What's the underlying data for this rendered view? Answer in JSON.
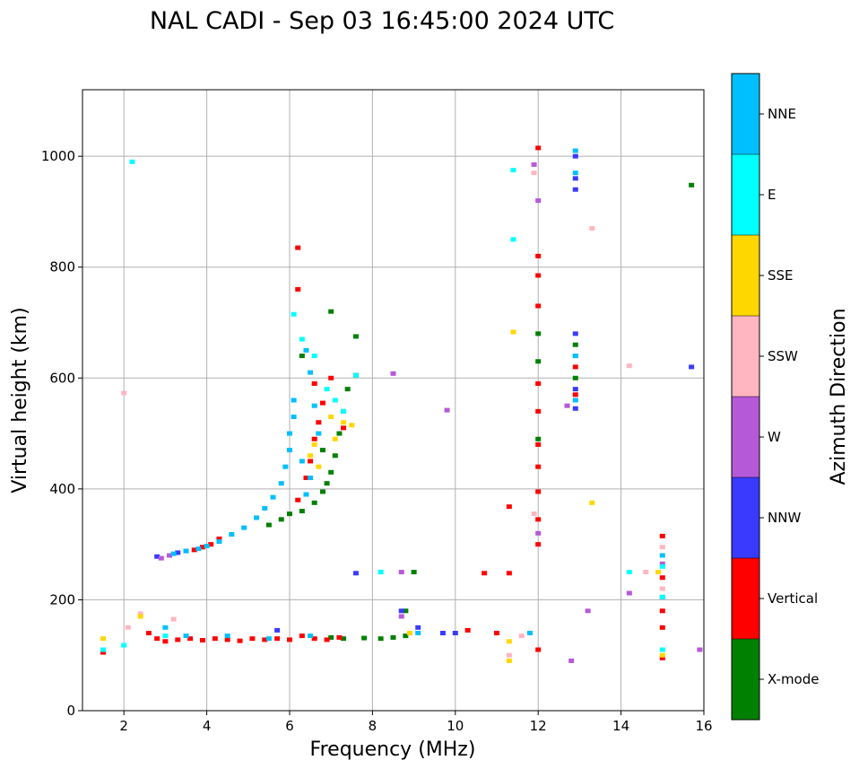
{
  "chart_data": {
    "type": "scatter",
    "title": "NAL CADI - Sep 03 16:45:00 2024 UTC",
    "xlabel": "Frequency (MHz)",
    "ylabel": "Virtual height (km)",
    "xlim": [
      1,
      16
    ],
    "ylim": [
      0,
      1120
    ],
    "xticks": [
      "2",
      "4",
      "6",
      "8",
      "10",
      "12",
      "14",
      "16"
    ],
    "yticks": [
      "0",
      "200",
      "400",
      "600",
      "800",
      "1000"
    ],
    "grid": true,
    "colorbar": {
      "title": "Azimuth Direction",
      "categories": [
        {
          "name": "X-mode",
          "color": "#008000"
        },
        {
          "name": "Vertical",
          "color": "#ff0000"
        },
        {
          "name": "NNW",
          "color": "#3a3aff"
        },
        {
          "name": "W",
          "color": "#b659d9"
        },
        {
          "name": "SSW",
          "color": "#ffb6c1"
        },
        {
          "name": "SSE",
          "color": "#ffd700"
        },
        {
          "name": "E",
          "color": "#00ffff"
        },
        {
          "name": "NNE",
          "color": "#00bfff"
        }
      ]
    },
    "series": [
      {
        "name": "X-mode",
        "points": [
          [
            6.3,
            360
          ],
          [
            6.6,
            375
          ],
          [
            6.8,
            395
          ],
          [
            6.9,
            410
          ],
          [
            7.0,
            430
          ],
          [
            7.1,
            460
          ],
          [
            7.2,
            500
          ],
          [
            7.3,
            540
          ],
          [
            7.4,
            580
          ],
          [
            5.5,
            335
          ],
          [
            5.8,
            345
          ],
          [
            6.0,
            355
          ],
          [
            6.3,
            640
          ],
          [
            7.0,
            720
          ],
          [
            7.6,
            675
          ],
          [
            7.6,
            605
          ],
          [
            6.8,
            470
          ],
          [
            8.2,
            130
          ],
          [
            8.5,
            132
          ],
          [
            8.8,
            135
          ],
          [
            9.0,
            250
          ],
          [
            8.8,
            180
          ],
          [
            12.0,
            680
          ],
          [
            12.0,
            630
          ],
          [
            12.0,
            490
          ],
          [
            12.9,
            660
          ],
          [
            12.9,
            600
          ],
          [
            15.7,
            948
          ],
          [
            7.0,
            132
          ],
          [
            7.3,
            130
          ],
          [
            7.8,
            131
          ]
        ]
      },
      {
        "name": "Vertical",
        "points": [
          [
            2.6,
            140
          ],
          [
            2.8,
            130
          ],
          [
            3.0,
            125
          ],
          [
            3.3,
            128
          ],
          [
            3.6,
            130
          ],
          [
            3.9,
            127
          ],
          [
            4.2,
            130
          ],
          [
            4.5,
            128
          ],
          [
            4.8,
            126
          ],
          [
            5.1,
            130
          ],
          [
            5.4,
            128
          ],
          [
            5.7,
            130
          ],
          [
            6.0,
            128
          ],
          [
            6.3,
            135
          ],
          [
            6.6,
            130
          ],
          [
            6.9,
            128
          ],
          [
            7.2,
            132
          ],
          [
            3.5,
            288
          ],
          [
            3.7,
            290
          ],
          [
            3.9,
            295
          ],
          [
            4.1,
            300
          ],
          [
            4.3,
            310
          ],
          [
            6.2,
            380
          ],
          [
            6.4,
            420
          ],
          [
            6.5,
            450
          ],
          [
            6.6,
            490
          ],
          [
            6.7,
            520
          ],
          [
            6.8,
            555
          ],
          [
            6.6,
            590
          ],
          [
            6.2,
            760
          ],
          [
            6.2,
            835
          ],
          [
            7.0,
            600
          ],
          [
            7.3,
            510
          ],
          [
            12.0,
            1015
          ],
          [
            12.0,
            820
          ],
          [
            12.0,
            785
          ],
          [
            12.0,
            730
          ],
          [
            12.0,
            590
          ],
          [
            12.0,
            540
          ],
          [
            12.0,
            480
          ],
          [
            12.0,
            440
          ],
          [
            12.0,
            395
          ],
          [
            12.0,
            345
          ],
          [
            12.0,
            300
          ],
          [
            12.0,
            110
          ],
          [
            10.3,
            145
          ],
          [
            10.7,
            248
          ],
          [
            11.3,
            248
          ],
          [
            11.3,
            368
          ],
          [
            12.9,
            570
          ],
          [
            12.9,
            620
          ],
          [
            15.0,
            95
          ],
          [
            15.0,
            150
          ],
          [
            15.0,
            180
          ],
          [
            15.0,
            240
          ],
          [
            15.0,
            315
          ],
          [
            1.5,
            105
          ],
          [
            11.0,
            140
          ]
        ]
      },
      {
        "name": "NNW",
        "points": [
          [
            2.8,
            278
          ],
          [
            3.3,
            285
          ],
          [
            5.7,
            145
          ],
          [
            8.7,
            180
          ],
          [
            8.9,
            140
          ],
          [
            9.1,
            150
          ],
          [
            10.0,
            140
          ],
          [
            12.9,
            1000
          ],
          [
            12.9,
            960
          ],
          [
            12.9,
            940
          ],
          [
            12.9,
            680
          ],
          [
            12.9,
            580
          ],
          [
            12.9,
            545
          ],
          [
            7.6,
            248
          ],
          [
            15.7,
            620
          ],
          [
            9.7,
            140
          ]
        ]
      },
      {
        "name": "W",
        "points": [
          [
            2.9,
            275
          ],
          [
            3.1,
            280
          ],
          [
            8.5,
            608
          ],
          [
            8.7,
            250
          ],
          [
            8.7,
            170
          ],
          [
            9.8,
            542
          ],
          [
            11.9,
            985
          ],
          [
            12.0,
            920
          ],
          [
            12.7,
            550
          ],
          [
            12.8,
            90
          ],
          [
            13.2,
            180
          ],
          [
            14.2,
            212
          ],
          [
            15.0,
            205
          ],
          [
            15.0,
            265
          ],
          [
            15.9,
            110
          ],
          [
            12.0,
            320
          ]
        ]
      },
      {
        "name": "SSW",
        "points": [
          [
            2.0,
            573
          ],
          [
            2.1,
            150
          ],
          [
            2.4,
            175
          ],
          [
            3.2,
            165
          ],
          [
            11.3,
            100
          ],
          [
            11.9,
            970
          ],
          [
            11.9,
            355
          ],
          [
            13.3,
            870
          ],
          [
            14.2,
            622
          ],
          [
            14.6,
            250
          ],
          [
            15.0,
            220
          ],
          [
            15.0,
            295
          ],
          [
            11.6,
            135
          ]
        ]
      },
      {
        "name": "SSE",
        "points": [
          [
            1.5,
            130
          ],
          [
            2.4,
            170
          ],
          [
            6.5,
            460
          ],
          [
            6.6,
            480
          ],
          [
            6.7,
            440
          ],
          [
            7.0,
            530
          ],
          [
            7.1,
            490
          ],
          [
            7.3,
            520
          ],
          [
            8.9,
            140
          ],
          [
            11.3,
            90
          ],
          [
            11.3,
            125
          ],
          [
            11.4,
            683
          ],
          [
            13.3,
            375
          ],
          [
            14.9,
            250
          ],
          [
            15.0,
            100
          ],
          [
            7.5,
            515
          ]
        ]
      },
      {
        "name": "E",
        "points": [
          [
            2.2,
            990
          ],
          [
            1.5,
            110
          ],
          [
            2.0,
            118
          ],
          [
            6.1,
            715
          ],
          [
            6.3,
            670
          ],
          [
            6.6,
            640
          ],
          [
            6.9,
            580
          ],
          [
            7.1,
            560
          ],
          [
            7.3,
            540
          ],
          [
            7.6,
            605
          ],
          [
            8.2,
            250
          ],
          [
            11.4,
            975
          ],
          [
            11.4,
            850
          ],
          [
            14.2,
            250
          ],
          [
            15.0,
            260
          ],
          [
            15.0,
            205
          ],
          [
            15.0,
            110
          ],
          [
            12.9,
            640
          ],
          [
            3.0,
            135
          ]
        ]
      },
      {
        "name": "NNE",
        "points": [
          [
            3.2,
            283
          ],
          [
            3.5,
            288
          ],
          [
            3.8,
            292
          ],
          [
            4.0,
            297
          ],
          [
            4.3,
            305
          ],
          [
            4.6,
            318
          ],
          [
            4.9,
            330
          ],
          [
            5.2,
            348
          ],
          [
            5.4,
            365
          ],
          [
            5.6,
            385
          ],
          [
            5.8,
            410
          ],
          [
            5.9,
            440
          ],
          [
            6.0,
            470
          ],
          [
            6.0,
            500
          ],
          [
            6.1,
            530
          ],
          [
            6.1,
            560
          ],
          [
            6.4,
            650
          ],
          [
            6.5,
            610
          ],
          [
            6.6,
            550
          ],
          [
            6.7,
            500
          ],
          [
            6.5,
            420
          ],
          [
            6.4,
            390
          ],
          [
            6.3,
            450
          ],
          [
            3.0,
            150
          ],
          [
            3.5,
            135
          ],
          [
            4.5,
            135
          ],
          [
            5.5,
            130
          ],
          [
            6.5,
            135
          ],
          [
            9.1,
            140
          ],
          [
            11.8,
            140
          ],
          [
            12.9,
            1010
          ],
          [
            12.9,
            970
          ],
          [
            12.9,
            640
          ],
          [
            12.9,
            560
          ],
          [
            15.0,
            280
          ]
        ]
      }
    ]
  }
}
